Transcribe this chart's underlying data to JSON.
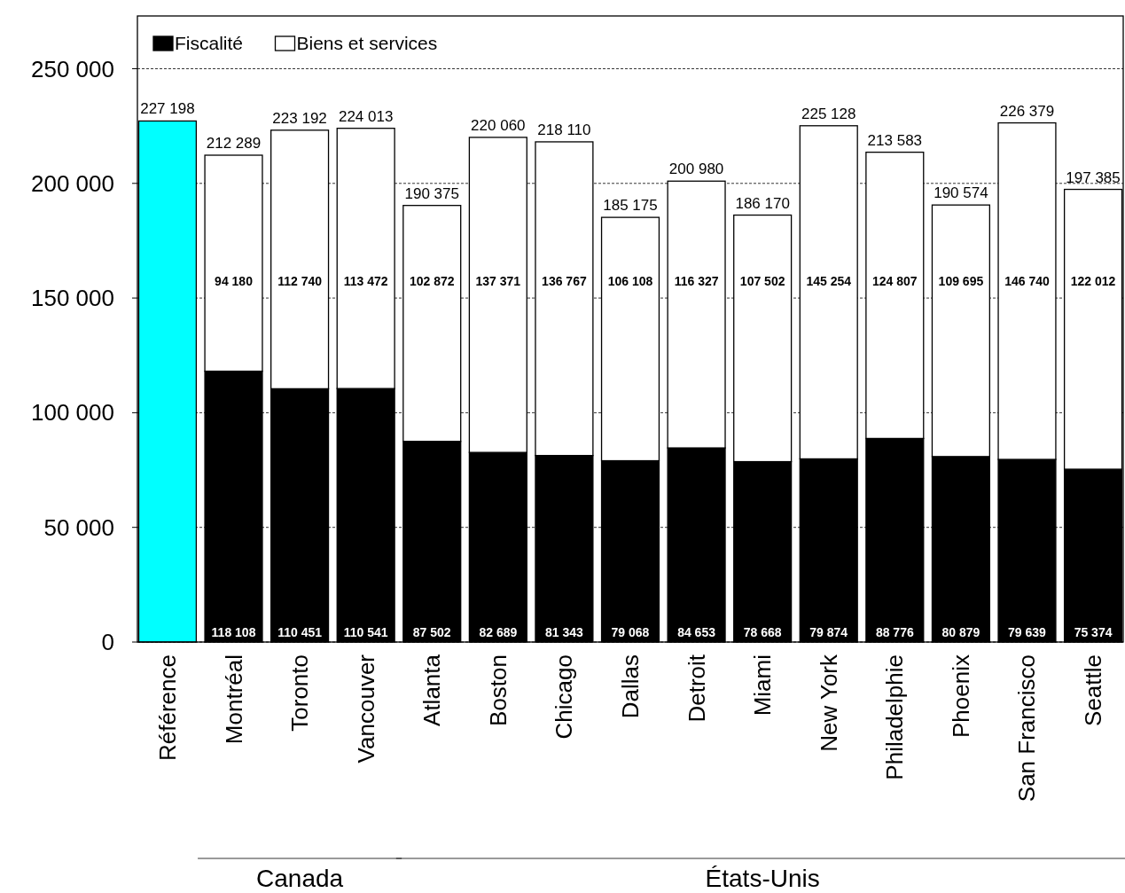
{
  "chart_data": {
    "type": "bar",
    "stacked": true,
    "categories": [
      "Référence",
      "Montréal",
      "Toronto",
      "Vancouver",
      "Atlanta",
      "Boston",
      "Chicago",
      "Dallas",
      "Detroit",
      "Miami",
      "New York",
      "Philadelphie",
      "Phoenix",
      "San Francisco",
      "Seattle"
    ],
    "series": [
      {
        "color": "#00ffff",
        "values": [
          227198,
          null,
          null,
          null,
          null,
          null,
          null,
          null,
          null,
          null,
          null,
          null,
          null,
          null,
          null
        ]
      },
      {
        "name": "Fiscalité",
        "color": "#000000",
        "values": [
          null,
          118108,
          110451,
          110541,
          87502,
          82689,
          81343,
          79068,
          84653,
          78668,
          79874,
          88776,
          80879,
          79639,
          75374
        ],
        "value_labels": [
          null,
          "118 108",
          "110 451",
          "110 541",
          "87 502",
          "82 689",
          "81 343",
          "79 068",
          "84 653",
          "78 668",
          "79 874",
          "88 776",
          "80 879",
          "79 639",
          "75 374"
        ]
      },
      {
        "name": "Biens et services",
        "color": "#ffffff",
        "values": [
          null,
          94180,
          112740,
          113472,
          102872,
          137371,
          136767,
          106108,
          116327,
          107502,
          145254,
          124807,
          109695,
          146740,
          122012
        ],
        "value_labels": [
          null,
          "94 180",
          "112 740",
          "113 472",
          "102 872",
          "137 371",
          "136 767",
          "106 108",
          "116 327",
          "107 502",
          "145 254",
          "124 807",
          "109 695",
          "146 740",
          "122 012"
        ]
      }
    ],
    "totals": [
      "227 198",
      "212 289",
      "223 192",
      "224 013",
      "190 375",
      "220 060",
      "218 110",
      "185 175",
      "200 980",
      "186 170",
      "225 128",
      "213 583",
      "190 574",
      "226 379",
      "197 385"
    ],
    "ylim": [
      0,
      273000
    ],
    "yticks": [
      0,
      {
        "value": 50000,
        "label": "50 000"
      },
      {
        "value": 100000,
        "label": "100 000"
      },
      {
        "value": 150000,
        "label": "150 000"
      },
      {
        "value": 200000,
        "label": "200 000"
      },
      {
        "value": 250000,
        "label": "250 000"
      }
    ],
    "grid": "y",
    "legend": "top left",
    "annotations": [
      "Canada",
      "États-Unis"
    ]
  }
}
